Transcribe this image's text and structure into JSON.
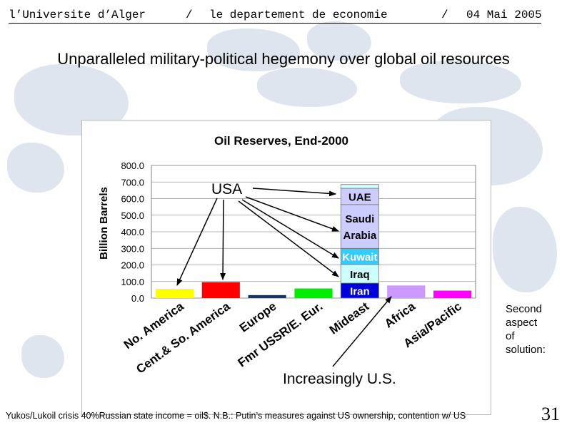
{
  "header": {
    "university": "l’Universite d’Alger",
    "sep1": "/",
    "department": "le departement de economie",
    "sep2": "/",
    "date": "04 Mai 2005"
  },
  "slide_title": "Unparalleled military-political hegemony over global oil resources",
  "annotations": {
    "usa": "USA",
    "increasingly": "Increasingly U.S."
  },
  "side_note": [
    "Second",
    "aspect",
    "of",
    "solution:"
  ],
  "footnote": "Yukos/Lukoil crisis 40%Russian state income = oil$. N.B.: Putin’s measures against US ownership, contention w/ US",
  "page_number": "31",
  "chart_data": {
    "type": "bar",
    "title": "Oil Reserves, End-2000",
    "ylabel": "Billion Barrels",
    "xlabel": "",
    "ylim": [
      0,
      800
    ],
    "yticks": [
      0,
      100,
      200,
      300,
      400,
      500,
      600,
      700,
      800
    ],
    "ytick_labels": [
      "0.0",
      "100.0",
      "200.0",
      "300.0",
      "400.0",
      "500.0",
      "600.0",
      "700.0",
      "800.0"
    ],
    "categories": [
      "No. America",
      "Cent.& So. America",
      "Europe",
      "Fmr USSR/E. Eur.",
      "Mideast",
      "Africa",
      "Asia/Pacific"
    ],
    "values": [
      56,
      96,
      18,
      58,
      685,
      76,
      45
    ],
    "colors": [
      "#ffff00",
      "#ff0000",
      "#17365d",
      "#00ee00",
      null,
      "#cc99ff",
      "#ff00ff"
    ],
    "mideast_stack": [
      {
        "name": "Iran",
        "value": 90,
        "color": "#0000dd"
      },
      {
        "name": "Iraq",
        "value": 113,
        "color": "#ccffff"
      },
      {
        "name": "Kuwait",
        "value": 97,
        "color": "#33ccff"
      },
      {
        "name": "Saudi Arabia",
        "value": 264,
        "color": "#ccccff"
      },
      {
        "name": "UAE",
        "value": 98,
        "color": "#ccccff"
      },
      {
        "name": "",
        "value": 23,
        "color": "#ccffff"
      }
    ]
  }
}
